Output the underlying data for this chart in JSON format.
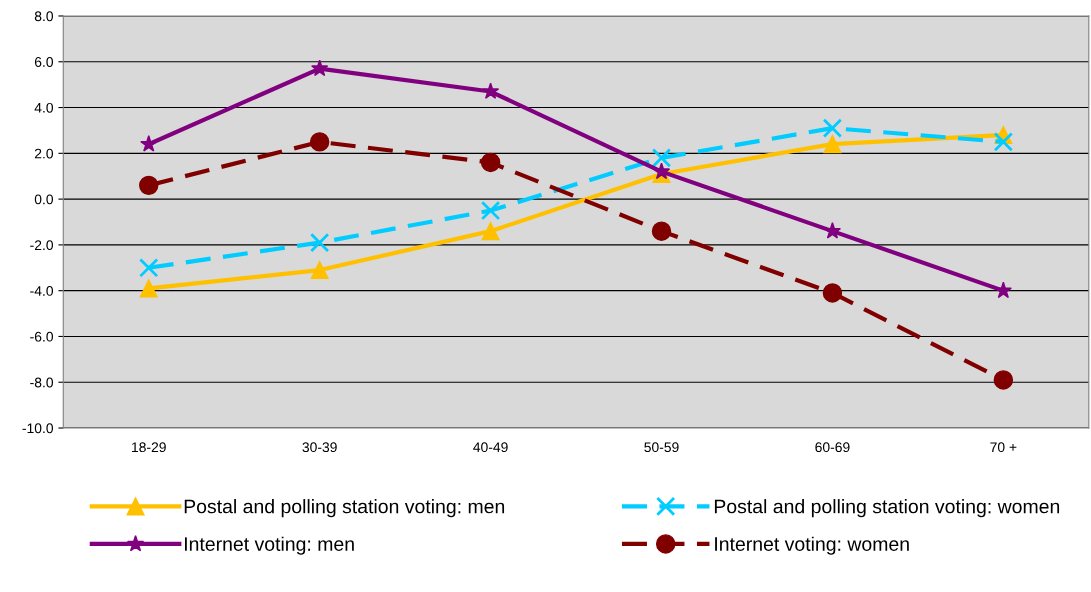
{
  "chart_data": {
    "type": "line",
    "categories": [
      "18-29",
      "30-39",
      "40-49",
      "50-59",
      "60-69",
      "70 +"
    ],
    "series": [
      {
        "name": "Postal and polling station voting: men",
        "color": "#ffc000",
        "marker": "triangle",
        "line_style": "solid",
        "values": [
          -3.9,
          -3.1,
          -1.4,
          1.1,
          2.4,
          2.8
        ]
      },
      {
        "name": "Postal and polling station voting: women",
        "color": "#00ccff",
        "marker": "cross",
        "line_style": "dashed",
        "values": [
          -3.0,
          -1.9,
          -0.5,
          1.8,
          3.1,
          2.5
        ]
      },
      {
        "name": "Internet voting: men",
        "color": "#800080",
        "marker": "star",
        "line_style": "solid",
        "values": [
          2.4,
          5.7,
          4.7,
          1.2,
          -1.4,
          -4.0
        ]
      },
      {
        "name": "Internet voting: women",
        "color": "#800000",
        "marker": "circle",
        "line_style": "dashed",
        "values": [
          0.6,
          2.5,
          1.6,
          -1.4,
          -4.1,
          -7.9
        ]
      }
    ],
    "ylim": [
      -10,
      8
    ],
    "yticks": [
      {
        "value": -10,
        "label": "-10.0"
      },
      {
        "value": -8,
        "label": "-8.0"
      },
      {
        "value": -6,
        "label": "-6.0"
      },
      {
        "value": -4,
        "label": "-4.0"
      },
      {
        "value": -2,
        "label": "-2.0"
      },
      {
        "value": 0,
        "label": "0.0"
      },
      {
        "value": 2,
        "label": "2.0"
      },
      {
        "value": 4,
        "label": "4.0"
      },
      {
        "value": 6,
        "label": "6.0"
      },
      {
        "value": 8,
        "label": "8.0"
      }
    ],
    "grid": "y",
    "legend": "bottom"
  }
}
